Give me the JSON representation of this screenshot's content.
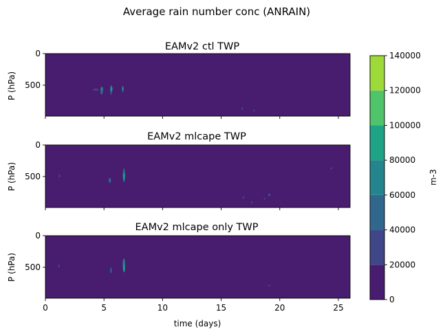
{
  "chart_data": {
    "type": "heatmap",
    "suptitle": "Average rain number conc (ANRAIN)",
    "xlabel": "time (days)",
    "ylabel": "P (hPa)",
    "xlim": [
      0,
      26
    ],
    "ylim": [
      990,
      0
    ],
    "xticks": [
      0,
      5,
      10,
      15,
      20,
      25
    ],
    "yticks": [
      0,
      500
    ],
    "grid": false,
    "panels": [
      {
        "title": "EAMv2 ctl TWP",
        "features": [
          {
            "t": 4.3,
            "p": 570,
            "dt": 0.5,
            "dp": 25,
            "level": 1
          },
          {
            "t": 4.8,
            "p": 585,
            "dt": 0.22,
            "dp": 130,
            "level": 2
          },
          {
            "t": 4.85,
            "p": 560,
            "dt": 0.12,
            "dp": 60,
            "level": 3
          },
          {
            "t": 5.6,
            "p": 575,
            "dt": 0.15,
            "dp": 160,
            "level": 2
          },
          {
            "t": 5.65,
            "p": 560,
            "dt": 0.07,
            "dp": 80,
            "level": 4
          },
          {
            "t": 6.6,
            "p": 560,
            "dt": 0.15,
            "dp": 110,
            "level": 2
          },
          {
            "t": 6.62,
            "p": 555,
            "dt": 0.06,
            "dp": 50,
            "level": 3
          },
          {
            "t": 16.8,
            "p": 870,
            "dt": 0.08,
            "dp": 40,
            "level": 1
          },
          {
            "t": 17.8,
            "p": 900,
            "dt": 0.06,
            "dp": 30,
            "level": 1
          }
        ]
      },
      {
        "title": "EAMv2 mlcape TWP",
        "features": [
          {
            "t": 1.2,
            "p": 490,
            "dt": 0.06,
            "dp": 50,
            "level": 1
          },
          {
            "t": 5.5,
            "p": 560,
            "dt": 0.2,
            "dp": 80,
            "level": 2
          },
          {
            "t": 6.7,
            "p": 480,
            "dt": 0.2,
            "dp": 220,
            "level": 2
          },
          {
            "t": 6.72,
            "p": 500,
            "dt": 0.08,
            "dp": 130,
            "level": 4
          },
          {
            "t": 16.9,
            "p": 830,
            "dt": 0.06,
            "dp": 40,
            "level": 1
          },
          {
            "t": 17.6,
            "p": 910,
            "dt": 0.06,
            "dp": 40,
            "level": 1
          },
          {
            "t": 18.7,
            "p": 850,
            "dt": 0.1,
            "dp": 30,
            "level": 1
          },
          {
            "t": 19.1,
            "p": 790,
            "dt": 0.12,
            "dp": 40,
            "level": 2
          },
          {
            "t": 24.4,
            "p": 370,
            "dt": 0.05,
            "dp": 30,
            "level": 1
          }
        ]
      },
      {
        "title": "EAMv2 mlcape only TWP",
        "features": [
          {
            "t": 1.15,
            "p": 480,
            "dt": 0.08,
            "dp": 50,
            "level": 1
          },
          {
            "t": 5.6,
            "p": 550,
            "dt": 0.14,
            "dp": 90,
            "level": 2
          },
          {
            "t": 6.7,
            "p": 470,
            "dt": 0.2,
            "dp": 220,
            "level": 3
          },
          {
            "t": 6.72,
            "p": 520,
            "dt": 0.08,
            "dp": 110,
            "level": 4
          },
          {
            "t": 19.1,
            "p": 790,
            "dt": 0.1,
            "dp": 30,
            "level": 1
          }
        ]
      }
    ],
    "colorbar": {
      "label": "m-3",
      "levels": [
        0,
        20000,
        40000,
        60000,
        80000,
        100000,
        120000,
        140000
      ],
      "tick_labels": [
        "0",
        "20000",
        "40000",
        "60000",
        "80000",
        "100000",
        "120000",
        "140000"
      ],
      "colors": [
        "#481c6e",
        "#3f4788",
        "#30678d",
        "#25858e",
        "#1ea386",
        "#50c46a",
        "#9ed93a",
        "#d8e219"
      ]
    }
  }
}
